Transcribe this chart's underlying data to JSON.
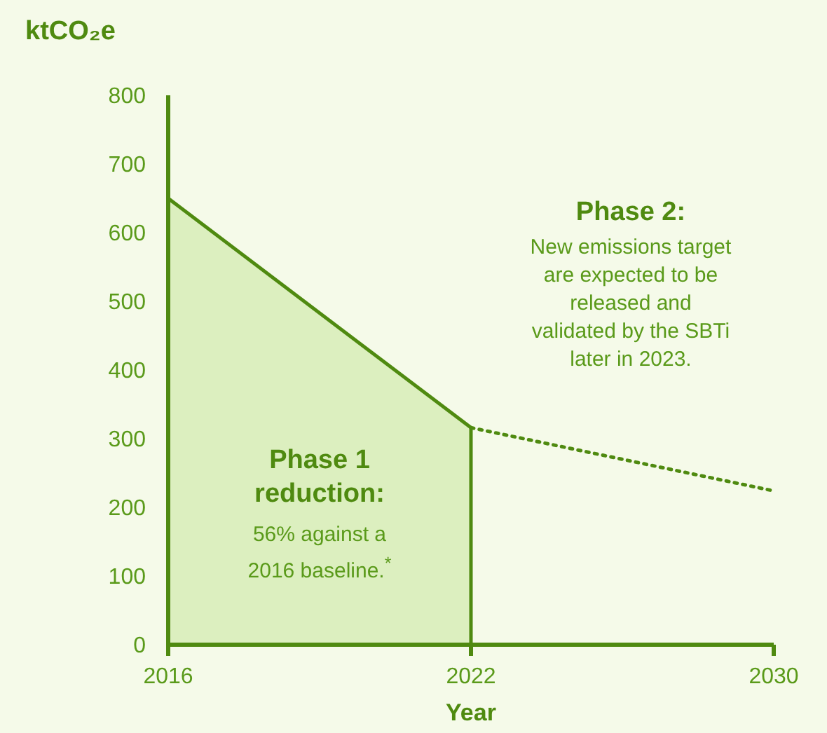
{
  "chart_data": {
    "type": "area",
    "ylabel": "ktCO₂e",
    "xlabel": "Year",
    "categories": [
      "2016",
      "2022",
      "2030"
    ],
    "series": [
      {
        "color": "#4f8a10",
        "values": [
          650,
          316,
          null
        ]
      },
      {
        "type": "line",
        "color": "#4f8a10",
        "values": [
          null,
          316,
          224
        ],
        "line_style": "dotted"
      }
    ],
    "ylim": [
      0,
      800
    ],
    "yticks": [
      0,
      100,
      200,
      300,
      400,
      500,
      600,
      700,
      800
    ],
    "grid": false,
    "marker": "none",
    "annotations": [
      "Phase 2:",
      "New emissions target are expected to be released and validated by the SBTi later in 2023.",
      "Phase 1 reduction:",
      "56% against a 2016 baseline.$^{*}$"
    ]
  }
}
